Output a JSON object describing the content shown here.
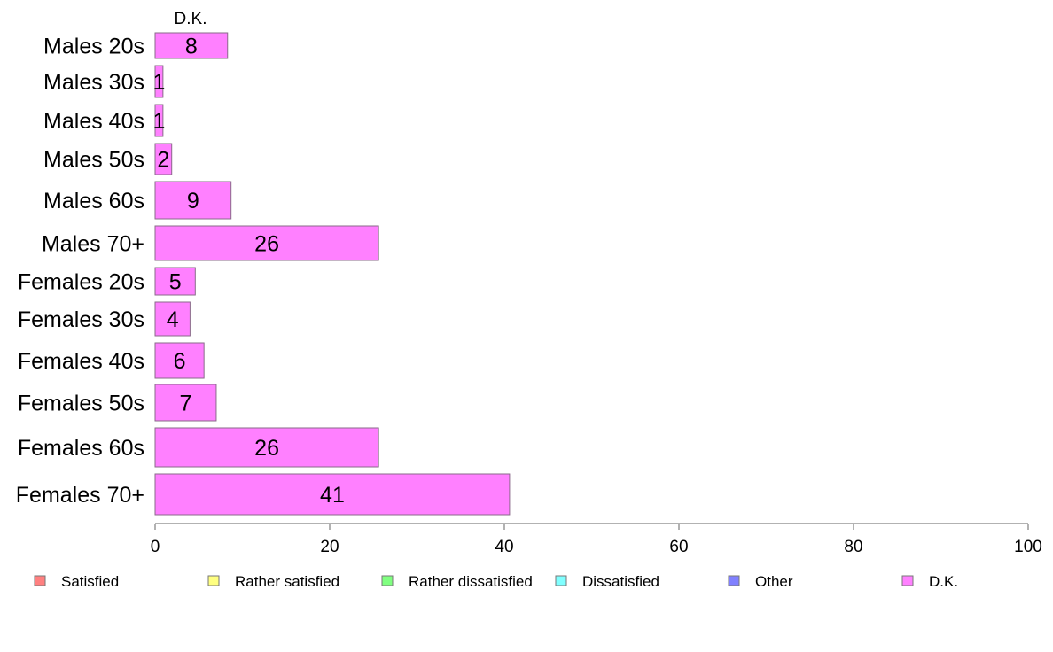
{
  "chart_data": {
    "type": "bar",
    "orientation": "horizontal",
    "stacked": true,
    "categories": [
      "Males 20s",
      "Males 30s",
      "Males 40s",
      "Males 50s",
      "Males 60s",
      "Males 70+",
      "Females 20s",
      "Females 30s",
      "Females 40s",
      "Females 50s",
      "Females 60s",
      "Females 70+"
    ],
    "series": [
      {
        "name": "D.K.",
        "color": "#ff80ff",
        "values": [
          8.3,
          0.9,
          0.9,
          1.9,
          8.7,
          25.6,
          4.6,
          4.0,
          5.6,
          7.0,
          25.6,
          40.6
        ],
        "labels": [
          "8",
          "1",
          "1",
          "2",
          "9",
          "26",
          "5",
          "4",
          "6",
          "7",
          "26",
          "41"
        ]
      }
    ],
    "column_titles": [
      "D.K."
    ],
    "xlim": [
      0,
      100
    ],
    "xticks": [
      "0",
      "20",
      "40",
      "60",
      "80",
      "100"
    ],
    "legend": {
      "placement": "bottom",
      "items": [
        {
          "label": "Satisfied",
          "color": "#ff8080"
        },
        {
          "label": "Rather satisfied",
          "color": "#ffff80"
        },
        {
          "label": "Rather dissatisfied",
          "color": "#80ff80"
        },
        {
          "label": "Dissatisfied",
          "color": "#80ffff"
        },
        {
          "label": "Other",
          "color": "#8080ff"
        },
        {
          "label": "D.K.",
          "color": "#ff80ff"
        }
      ]
    },
    "grid": false
  }
}
